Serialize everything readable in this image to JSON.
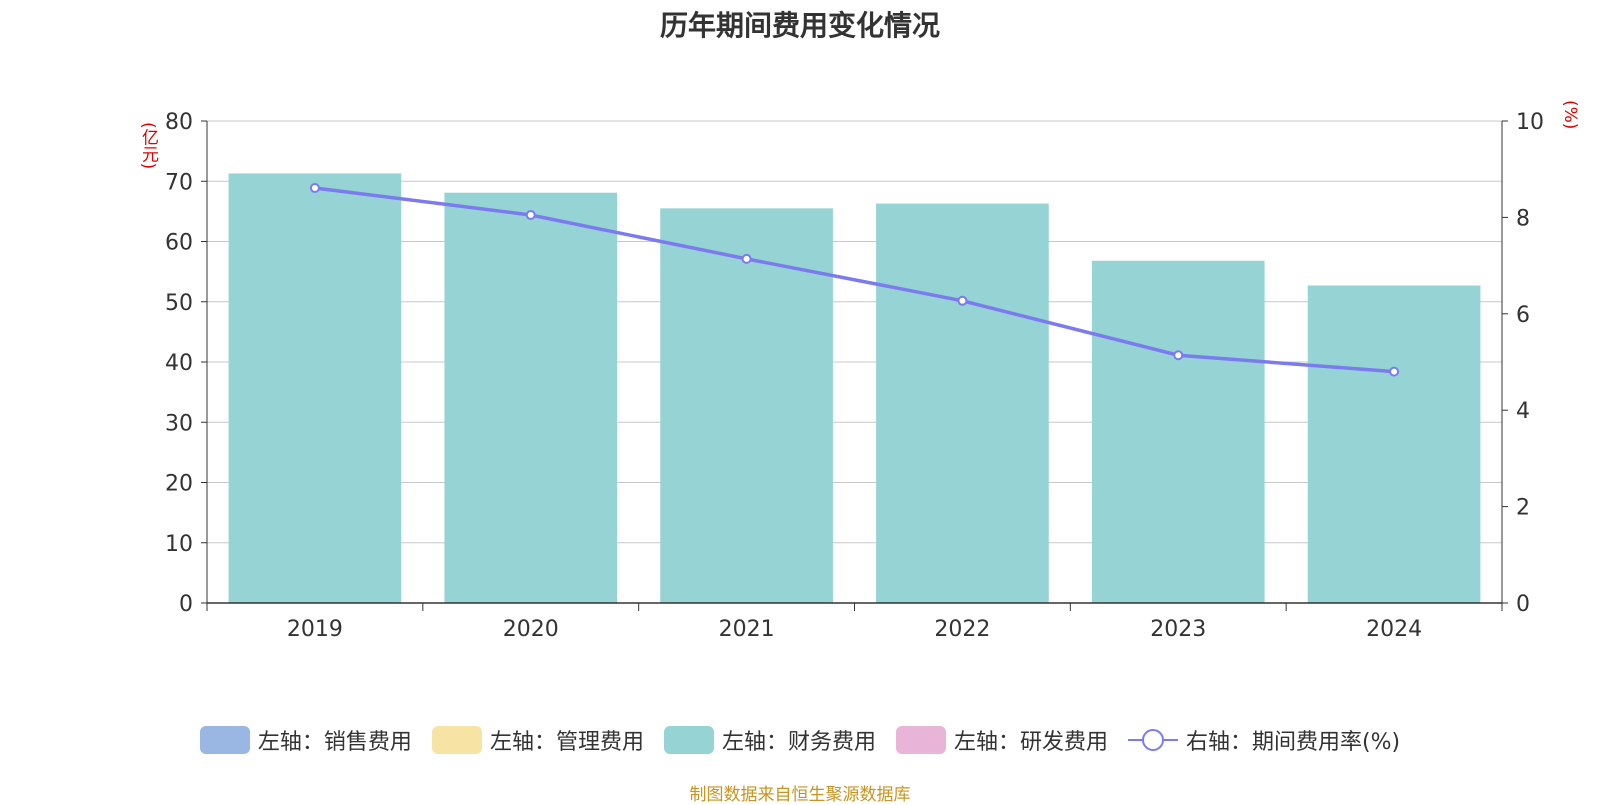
{
  "title": "历年期间费用变化情况",
  "source": "制图数据来自恒生聚源数据库",
  "left_unit": "(亿元)",
  "right_unit": "(%)",
  "legend": [
    {
      "label": "左轴：销售费用",
      "color": "#9ab6e3",
      "kind": "bar"
    },
    {
      "label": "左轴：管理费用",
      "color": "#f7e3a3",
      "kind": "bar"
    },
    {
      "label": "左轴：财务费用",
      "color": "#96d3d4",
      "kind": "bar"
    },
    {
      "label": "左轴：研发费用",
      "color": "#e8b4d8",
      "kind": "bar"
    },
    {
      "label": "右轴：期间费用率(%)",
      "color": "#7b7bef",
      "kind": "line"
    }
  ],
  "chart_data": {
    "type": "bar",
    "categories": [
      "2019",
      "2020",
      "2021",
      "2022",
      "2023",
      "2024"
    ],
    "series": [
      {
        "name": "左轴：财务费用",
        "axis": "left",
        "type": "bar",
        "color": "#96d3d4",
        "values": [
          71.3,
          68.1,
          65.5,
          66.3,
          56.8,
          52.7
        ]
      },
      {
        "name": "右轴：期间费用率(%)",
        "axis": "right",
        "type": "line",
        "color": "#7b7bef",
        "values": [
          8.61,
          8.05,
          7.14,
          6.27,
          5.14,
          4.8
        ]
      }
    ],
    "y_left": {
      "min": 0,
      "max": 80,
      "ticks": [
        0,
        10,
        20,
        30,
        40,
        50,
        60,
        70,
        80
      ]
    },
    "y_right": {
      "min": 0,
      "max": 10,
      "ticks": [
        0,
        2,
        4,
        6,
        8,
        10
      ]
    },
    "grid": true,
    "legend_position": "bottom"
  }
}
